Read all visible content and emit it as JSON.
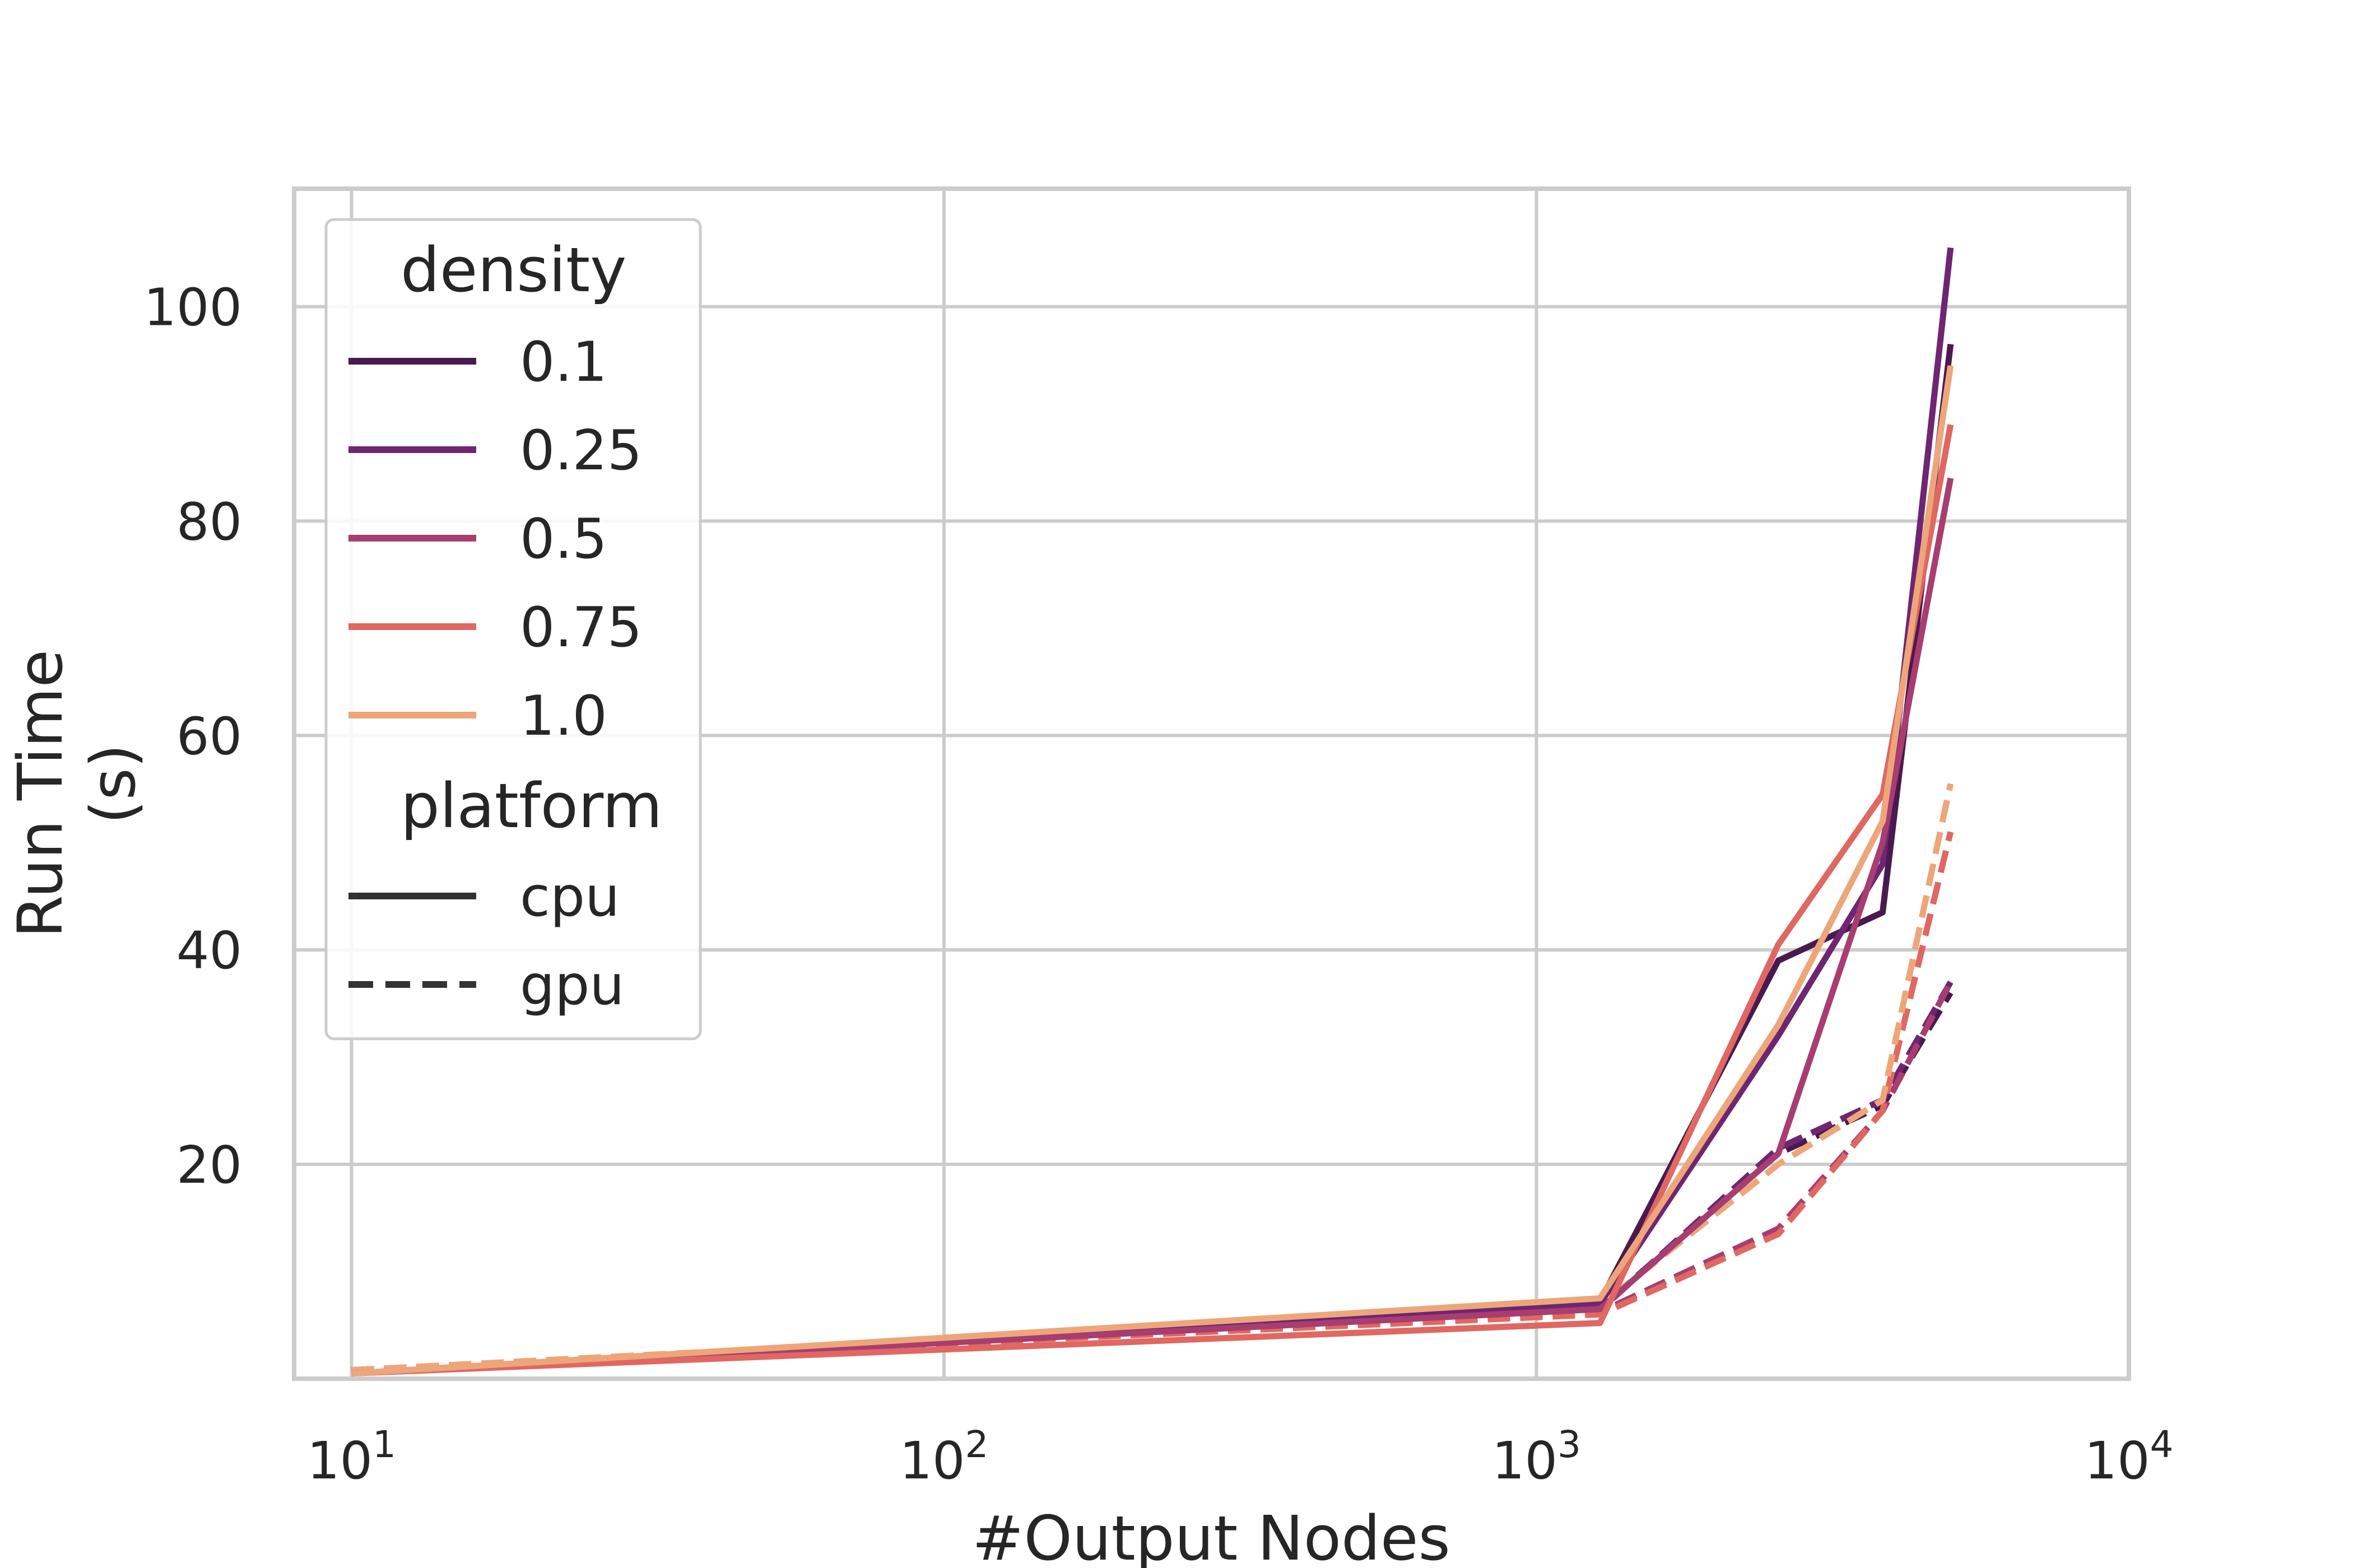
{
  "chart_data": {
    "type": "line",
    "xlabel": "#Output Nodes",
    "ylabel_lines": [
      "Run Time",
      "(s)"
    ],
    "xscale": "log",
    "xlim": [
      8,
      10000
    ],
    "ylim": [
      0,
      111
    ],
    "x_ticks": [
      {
        "value": 10,
        "base": "10",
        "exp": "1"
      },
      {
        "value": 100,
        "base": "10",
        "exp": "2"
      },
      {
        "value": 1000,
        "base": "10",
        "exp": "3"
      },
      {
        "value": 10000,
        "base": "10",
        "exp": "4"
      }
    ],
    "y_ticks": [
      {
        "value": 20,
        "label": "20"
      },
      {
        "value": 40,
        "label": "40"
      },
      {
        "value": 60,
        "label": "60"
      },
      {
        "value": 80,
        "label": "80"
      },
      {
        "value": 100,
        "label": "100"
      }
    ],
    "grid": true,
    "legend_position": "top-left",
    "legend": {
      "density_title": "density",
      "densities": [
        {
          "label": "0.1",
          "color": "#4a1a4f"
        },
        {
          "label": "0.25",
          "color": "#6e2672"
        },
        {
          "label": "0.5",
          "color": "#a83d70"
        },
        {
          "label": "0.75",
          "color": "#e06762"
        },
        {
          "label": "1.0",
          "color": "#eda679"
        }
      ],
      "platform_title": "platform",
      "platforms": [
        {
          "label": "cpu",
          "dash": "solid"
        },
        {
          "label": "gpu",
          "dash": "dashed"
        }
      ],
      "legend_line_color": "#333333"
    },
    "series": [
      {
        "density": "0.1",
        "platform": "cpu",
        "color": "#4a1a4f",
        "x": [
          10,
          1280,
          2560,
          3840,
          5000
        ],
        "y": [
          0.5,
          7.2,
          39,
          43.5,
          96.5
        ]
      },
      {
        "density": "0.25",
        "platform": "cpu",
        "color": "#6e2672",
        "x": [
          10,
          1280,
          2560,
          3840,
          5000
        ],
        "y": [
          0.5,
          7.0,
          32,
          48,
          105.5
        ]
      },
      {
        "density": "0.5",
        "platform": "cpu",
        "color": "#a83d70",
        "x": [
          10,
          1280,
          2560,
          3840,
          5000
        ],
        "y": [
          0.5,
          6.5,
          21,
          50,
          84
        ]
      },
      {
        "density": "0.75",
        "platform": "cpu",
        "color": "#e06762",
        "x": [
          10,
          1280,
          2560,
          3840,
          5000
        ],
        "y": [
          0.5,
          5.2,
          40.5,
          54.5,
          89
        ]
      },
      {
        "density": "1.0",
        "platform": "cpu",
        "color": "#eda679",
        "x": [
          10,
          1280,
          2560,
          3840,
          5000
        ],
        "y": [
          0.5,
          7.5,
          33,
          52,
          94.5
        ]
      },
      {
        "density": "0.1",
        "platform": "gpu",
        "color": "#4a1a4f",
        "x": [
          10,
          1280,
          2560,
          3840,
          5000
        ],
        "y": [
          0.8,
          6.6,
          21,
          25.5,
          36
        ]
      },
      {
        "density": "0.25",
        "platform": "gpu",
        "color": "#6e2672",
        "x": [
          10,
          1280,
          2560,
          3840,
          5000
        ],
        "y": [
          0.8,
          6.4,
          21.5,
          26,
          37
        ]
      },
      {
        "density": "0.5",
        "platform": "gpu",
        "color": "#a83d70",
        "x": [
          10,
          1280,
          2560,
          3840,
          5000
        ],
        "y": [
          0.8,
          6.2,
          14,
          25,
          37
        ]
      },
      {
        "density": "0.75",
        "platform": "gpu",
        "color": "#e06762",
        "x": [
          10,
          1280,
          2560,
          3840,
          5000
        ],
        "y": [
          0.8,
          6.0,
          13.5,
          25,
          51
        ]
      },
      {
        "density": "1.0",
        "platform": "gpu",
        "color": "#eda679",
        "x": [
          10,
          1280,
          2560,
          3840,
          5000
        ],
        "y": [
          0.8,
          6.8,
          20,
          26,
          55.5
        ]
      }
    ]
  }
}
